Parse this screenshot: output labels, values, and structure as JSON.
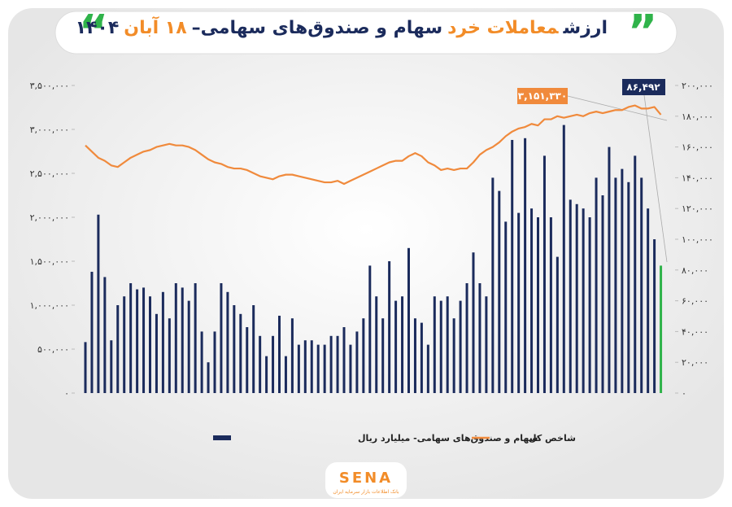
{
  "chart_data": {
    "type": "bar_line",
    "title_parts": [
      {
        "text": "ارزش",
        "color": "#1b2b5c"
      },
      {
        "text": "معاملات خرد",
        "color": "#f28c28"
      },
      {
        "text": "سهام و صندوق‌های سهامی–",
        "color": "#1b2b5c"
      },
      {
        "text": "۱۸ آبان",
        "color": "#f28c28"
      },
      {
        "text": "۱۴۰۴",
        "color": "#1b2b5c"
      }
    ],
    "series": [
      {
        "name": "سهام و صندوق‌های سهامی- میلیارد ریال",
        "color": "#1b2b5c",
        "last_color": "#2fb34a",
        "axis": "y",
        "values": [
          580000,
          1380000,
          2030000,
          1320000,
          600000,
          1000000,
          1100000,
          1250000,
          1180000,
          1200000,
          1100000,
          900000,
          1150000,
          850000,
          1250000,
          1200000,
          1050000,
          1250000,
          700000,
          350000,
          700000,
          1250000,
          1150000,
          1000000,
          900000,
          750000,
          1000000,
          650000,
          420000,
          650000,
          880000,
          420000,
          850000,
          550000,
          600000,
          600000,
          550000,
          550000,
          650000,
          650000,
          750000,
          550000,
          700000,
          850000,
          1450000,
          1100000,
          850000,
          1500000,
          1050000,
          1100000,
          1650000,
          850000,
          800000,
          550000,
          1100000,
          1050000,
          1100000,
          850000,
          1050000,
          1250000,
          1600000,
          1250000,
          1100000,
          2450000,
          2300000,
          1950000,
          2880000,
          2050000,
          2900000,
          2100000,
          2000000,
          2700000,
          2000000,
          1550000,
          3050000,
          2200000,
          2150000,
          2100000,
          2000000,
          2450000,
          2250000,
          2800000,
          2450000,
          2550000,
          2400000,
          2700000,
          2450000,
          2100000,
          1750000,
          1450000
        ]
      },
      {
        "name": "شاخص کل",
        "color": "#f08a3c",
        "axis": "y2",
        "values": [
          161000,
          157000,
          153000,
          151000,
          148000,
          147000,
          150000,
          153000,
          155000,
          157000,
          158000,
          160000,
          161000,
          162000,
          161000,
          161000,
          160000,
          158000,
          155000,
          152000,
          150000,
          149000,
          147000,
          146000,
          146000,
          145000,
          143000,
          141000,
          140000,
          139000,
          141000,
          142000,
          142000,
          141000,
          140000,
          139000,
          138000,
          137000,
          137000,
          138000,
          136000,
          138000,
          140000,
          142000,
          144000,
          146000,
          148000,
          150000,
          151000,
          151000,
          154000,
          156000,
          154000,
          150000,
          148000,
          145000,
          146000,
          145000,
          146000,
          146000,
          150000,
          155000,
          158000,
          160000,
          163000,
          167000,
          170000,
          172000,
          173000,
          175000,
          174000,
          178000,
          178000,
          180000,
          179000,
          180000,
          181000,
          180000,
          182000,
          183000,
          182000,
          183000,
          184000,
          184000,
          186000,
          187000,
          185000,
          185000,
          186000,
          181000
        ]
      }
    ],
    "ylim": [
      0,
      3500000
    ],
    "yticks": [
      {
        "value": 0,
        "label": "۰"
      },
      {
        "value": 500000,
        "label": "۵۰۰,۰۰۰"
      },
      {
        "value": 1000000,
        "label": "۱,۰۰۰,۰۰۰"
      },
      {
        "value": 1500000,
        "label": "۱,۵۰۰,۰۰۰"
      },
      {
        "value": 2000000,
        "label": "۲,۰۰۰,۰۰۰"
      },
      {
        "value": 2500000,
        "label": "۲,۵۰۰,۰۰۰"
      },
      {
        "value": 3000000,
        "label": "۳,۰۰۰,۰۰۰"
      },
      {
        "value": 3500000,
        "label": "۳,۵۰۰,۰۰۰"
      }
    ],
    "y2lim": [
      0,
      200000
    ],
    "y2ticks": [
      {
        "value": 0,
        "label": "۰"
      },
      {
        "value": 20000,
        "label": "۲۰,۰۰۰"
      },
      {
        "value": 40000,
        "label": "۴۰,۰۰۰"
      },
      {
        "value": 60000,
        "label": "۶۰,۰۰۰"
      },
      {
        "value": 80000,
        "label": "۸۰,۰۰۰"
      },
      {
        "value": 100000,
        "label": "۱۰۰,۰۰۰"
      },
      {
        "value": 120000,
        "label": "۱۲۰,۰۰۰"
      },
      {
        "value": 140000,
        "label": "۱۴۰,۰۰۰"
      },
      {
        "value": 160000,
        "label": "۱۶۰,۰۰۰"
      },
      {
        "value": 180000,
        "label": "۱۸۰,۰۰۰"
      },
      {
        "value": 200000,
        "label": "۲۰۰,۰۰۰"
      }
    ],
    "annotations": [
      "۳,۱۵۱,۳۳۰",
      "۸۶,۴۹۲"
    ],
    "logo": "SENA",
    "logo_tagline": "بانک اطلاعات بازار سرمایه ایران"
  }
}
